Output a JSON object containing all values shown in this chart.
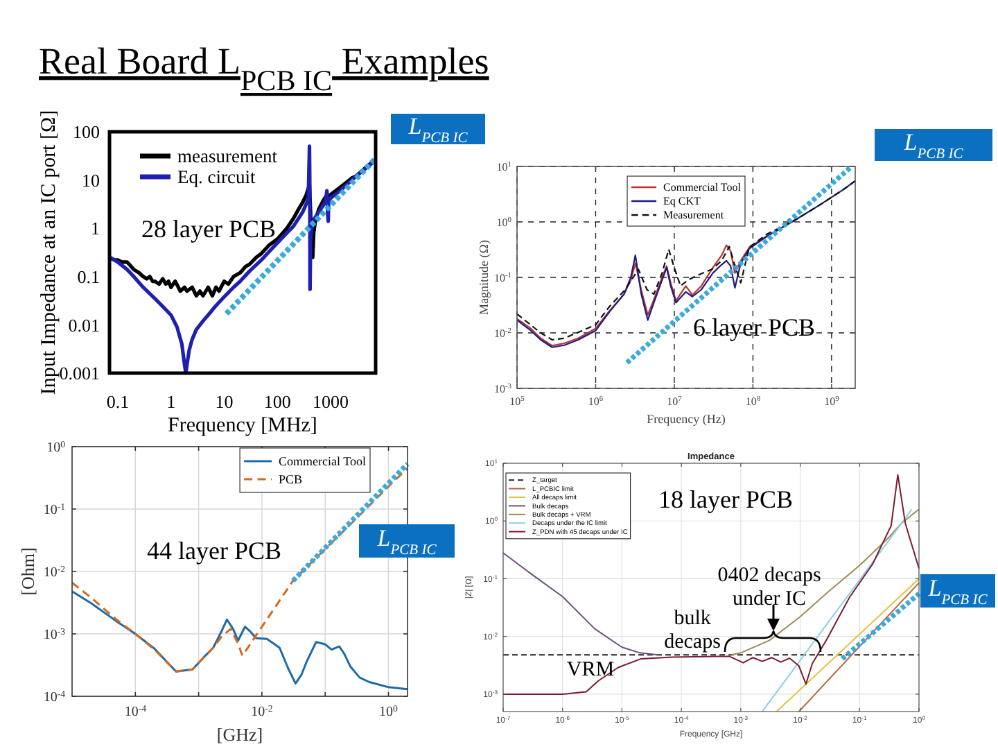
{
  "chart_data": [
    {
      "type": "other",
      "title": "Real Board L$_{PCB IC}$ Examples"
    },
    {
      "type": "line",
      "xlabel": "Frequency [MHz]",
      "ylabel": "Input Impedance at an IC port [Ω]",
      "log": "xy",
      "xlim": [
        0.07,
        7000
      ],
      "ylim": [
        0.001,
        100
      ],
      "xticks": [
        0.1,
        1,
        10,
        100,
        1000
      ],
      "yticks": [
        0.001,
        0.01,
        0.1,
        1,
        10,
        100
      ],
      "legend": "top left",
      "annotations": [
        "28 layer PCB"
      ],
      "series": [
        {
          "name": "measurement",
          "color": "#000000",
          "x": [
            0.07,
            0.08,
            0.09,
            0.1,
            0.12,
            0.15,
            0.18,
            0.2,
            0.25,
            0.3,
            0.35,
            0.4,
            0.45,
            0.5,
            0.6,
            0.7,
            0.8,
            0.9,
            1,
            1.2,
            1.5,
            1.8,
            2,
            2.5,
            3,
            3.5,
            4,
            5,
            6,
            7,
            8,
            10,
            12,
            15,
            20,
            25,
            30,
            40,
            50,
            70,
            100,
            150,
            200,
            250,
            300,
            350,
            400,
            420,
            440,
            460,
            480,
            520,
            600,
            700,
            800,
            1000,
            1500,
            2000,
            2500,
            3000,
            4000,
            5000,
            6000,
            7000
          ],
          "values": [
            0.25,
            0.23,
            0.22,
            0.22,
            0.2,
            0.2,
            0.16,
            0.14,
            0.12,
            0.1,
            0.09,
            0.1,
            0.08,
            0.08,
            0.07,
            0.09,
            0.07,
            0.08,
            0.06,
            0.08,
            0.05,
            0.06,
            0.05,
            0.06,
            0.04,
            0.05,
            0.04,
            0.06,
            0.04,
            0.06,
            0.05,
            0.08,
            0.07,
            0.1,
            0.12,
            0.16,
            0.18,
            0.25,
            0.3,
            0.45,
            0.6,
            1,
            1.6,
            2.5,
            3.5,
            5,
            8,
            2,
            0.5,
            0.25,
            0.8,
            1.5,
            2.5,
            3.5,
            4.5,
            5,
            7,
            9,
            11,
            12,
            16,
            20,
            23,
            26
          ]
        },
        {
          "name": "Eq. circuit",
          "color": "#1f1fb0",
          "x": [
            0.07,
            0.1,
            0.15,
            0.2,
            0.3,
            0.5,
            0.7,
            1,
            1.3,
            1.6,
            1.8,
            1.9,
            2,
            2.2,
            2.5,
            3,
            4,
            5,
            7,
            10,
            15,
            20,
            30,
            50,
            70,
            100,
            150,
            200,
            300,
            380,
            400,
            405,
            410,
            420,
            450,
            500,
            600,
            800,
            850,
            880,
            900,
            920,
            1000,
            1500,
            2000,
            3000,
            5000,
            7000
          ],
          "values": [
            0.25,
            0.2,
            0.14,
            0.1,
            0.06,
            0.035,
            0.024,
            0.016,
            0.009,
            0.004,
            0.0015,
            0.001,
            0.0015,
            0.003,
            0.005,
            0.008,
            0.012,
            0.016,
            0.025,
            0.038,
            0.06,
            0.08,
            0.13,
            0.22,
            0.33,
            0.5,
            0.8,
            1.1,
            2.2,
            4,
            50,
            10,
            0.055,
            0.6,
            1.2,
            1.6,
            2.2,
            3.5,
            6,
            2,
            1.4,
            3.8,
            4.2,
            6,
            8,
            12,
            19,
            26
          ]
        },
        {
          "name": "L$_{PCB IC}$",
          "color": "#3aa9dc",
          "line_style": "dotted",
          "x": [
            11,
            7000
          ],
          "values": [
            0.017,
            28
          ]
        }
      ]
    },
    {
      "type": "line",
      "xlabel": "Frequency (Hz)",
      "ylabel": "Magnitude (Ω)",
      "log": "xy",
      "xlim": [
        100000,
        2000000000
      ],
      "ylim": [
        0.001,
        10
      ],
      "xticks": [
        {
          "value": 100000,
          "label": "10$^{5}$"
        },
        {
          "value": 1000000,
          "label": "10$^{6}$"
        },
        {
          "value": 10000000,
          "label": "10$^{7}$"
        },
        {
          "value": 100000000,
          "label": "10$^{8}$"
        },
        {
          "value": 1000000000,
          "label": "10$^{9}$"
        }
      ],
      "yticks": [
        {
          "value": 0.001,
          "label": "10$^{-3}$"
        },
        {
          "value": 0.01,
          "label": "10$^{-2}$"
        },
        {
          "value": 0.1,
          "label": "10$^{-1}$"
        },
        {
          "value": 1,
          "label": "10$^{0}$"
        },
        {
          "value": 10,
          "label": "10$^{1}$"
        }
      ],
      "grid": true,
      "legend": "top",
      "annotations": [
        "6 layer PCB"
      ],
      "series": [
        {
          "name": "Commercial Tool",
          "color": "#b83232",
          "x": [
            100000,
            150000,
            200000,
            280000,
            400000,
            600000,
            1000000,
            1500000,
            2300000,
            2800000,
            3200000,
            3800000,
            4600000,
            5500000,
            7000000,
            8000000,
            9000000,
            10500000,
            14000000,
            17000000,
            22000000,
            31000000,
            40000000,
            46000000,
            52000000,
            59000000,
            70000000,
            90000000,
            150000000,
            350000000
          ],
          "values": [
            0.018,
            0.012,
            0.008,
            0.0059,
            0.0065,
            0.008,
            0.012,
            0.025,
            0.05,
            0.09,
            0.18,
            0.06,
            0.021,
            0.04,
            0.1,
            0.16,
            0.08,
            0.038,
            0.07,
            0.048,
            0.07,
            0.15,
            0.25,
            0.38,
            0.3,
            0.12,
            0.2,
            0.35,
            0.55,
            1.1
          ]
        },
        {
          "name": "Eq CKT",
          "color": "#1c1c84",
          "x": [
            100000,
            150000,
            200000,
            280000,
            400000,
            600000,
            1000000,
            1500000,
            2300000,
            2800000,
            3200000,
            3800000,
            4600000,
            5500000,
            7000000,
            8000000,
            9000000,
            10500000,
            14000000,
            17000000,
            22000000,
            31000000,
            40000000,
            46000000,
            52000000,
            59000000,
            70000000,
            90000000,
            150000000,
            350000000,
            700000000,
            1400000000,
            2000000000
          ],
          "values": [
            0.017,
            0.011,
            0.0075,
            0.0055,
            0.006,
            0.0075,
            0.011,
            0.024,
            0.05,
            0.1,
            0.25,
            0.05,
            0.017,
            0.035,
            0.09,
            0.15,
            0.07,
            0.035,
            0.055,
            0.045,
            0.06,
            0.12,
            0.17,
            0.2,
            0.16,
            0.065,
            0.18,
            0.33,
            0.55,
            1.1,
            2,
            3.8,
            5.5
          ]
        },
        {
          "name": "Measurement",
          "color": "#111111",
          "line_style": "dashed",
          "x": [
            100000,
            200000,
            280000,
            400000,
            1000000,
            1500000,
            2300000,
            3000000,
            3500000,
            4500000,
            5500000,
            7000000,
            8500000,
            10000000,
            12000000,
            15000000,
            20000000,
            30000000,
            40000000,
            50000000,
            60000000,
            70000000,
            90000000,
            150000000,
            350000000,
            700000000,
            1400000000,
            2000000000
          ],
          "values": [
            0.022,
            0.01,
            0.0075,
            0.008,
            0.014,
            0.03,
            0.057,
            0.1,
            0.14,
            0.06,
            0.05,
            0.12,
            0.32,
            0.15,
            0.07,
            0.09,
            0.11,
            0.14,
            0.2,
            0.36,
            0.15,
            0.08,
            0.35,
            0.6,
            1.1,
            2,
            3.8,
            5.5
          ]
        },
        {
          "name": "L$_{PCB IC}$",
          "color": "#3aa9dc",
          "line_style": "dotted",
          "x": [
            2500000,
            1800000000
          ],
          "values": [
            0.0029,
            10
          ]
        }
      ]
    },
    {
      "type": "line",
      "xlabel": "[GHz]",
      "ylabel": "[Ohm]",
      "log": "xy",
      "xlim": [
        1e-05,
        2
      ],
      "ylim": [
        0.0001,
        1
      ],
      "xticks": [
        {
          "value": 0.0001,
          "label": "10$^{-4}$"
        },
        {
          "value": 0.001,
          "label": null
        },
        {
          "value": 0.01,
          "label": "10$^{-2}$"
        },
        {
          "value": 0.1,
          "label": null
        },
        {
          "value": 1,
          "label": "10$^{0}$"
        }
      ],
      "yticks": [
        {
          "value": 0.0001,
          "label": "10$^{-4}$"
        },
        {
          "value": 0.001,
          "label": "10$^{-3}$"
        },
        {
          "value": 0.01,
          "label": "10$^{-2}$"
        },
        {
          "value": 0.1,
          "label": "10$^{-1}$"
        },
        {
          "value": 1,
          "label": "10$^{0}$"
        }
      ],
      "grid": true,
      "legend": "top right",
      "annotations": [
        "44 layer PCB"
      ],
      "series": [
        {
          "name": "Commercial Tool",
          "color": "#1f6aa5",
          "x": [
            1e-05,
            2e-05,
            5e-05,
            0.0001,
            0.0002,
            0.00044,
            0.0008,
            0.0012,
            0.0017,
            0.0023,
            0.0028,
            0.0035,
            0.0042,
            0.0054,
            0.0065,
            0.0081,
            0.012,
            0.019,
            0.026,
            0.034,
            0.042,
            0.051,
            0.072,
            0.1,
            0.126,
            0.167,
            0.2,
            0.25,
            0.35,
            0.49,
            1,
            2
          ],
          "values": [
            0.0048,
            0.0031,
            0.0016,
            0.001,
            0.00058,
            0.00025,
            0.00027,
            0.00042,
            0.0006,
            0.0011,
            0.0017,
            0.0012,
            0.00078,
            0.0013,
            0.0011,
            0.00085,
            0.00083,
            0.0006,
            0.00028,
            0.00016,
            0.00022,
            0.00036,
            0.00074,
            0.00068,
            0.00056,
            0.00063,
            0.00048,
            0.0003,
            0.0002,
            0.00017,
            0.00014,
            0.00013
          ]
        },
        {
          "name": "PCB",
          "color": "#d2691e",
          "line_style": "dashed",
          "x": [
            1e-05,
            2e-05,
            5e-05,
            0.0001,
            0.0002,
            0.00044,
            0.0008,
            0.0012,
            0.0017,
            0.0023,
            0.0032,
            0.0042,
            0.0049,
            0.006,
            0.0105,
            0.031,
            0.1,
            0.3,
            1,
            2
          ],
          "values": [
            0.0066,
            0.0038,
            0.0017,
            0.001,
            0.00056,
            0.00025,
            0.00027,
            0.00042,
            0.0006,
            0.0009,
            0.0012,
            0.0007,
            0.00045,
            0.0006,
            0.0014,
            0.0071,
            0.023,
            0.068,
            0.23,
            0.45
          ]
        },
        {
          "name": "L$_{PCB IC}$",
          "color": "#3aa9dc",
          "line_style": "dotted",
          "x": [
            0.031,
            2
          ],
          "values": [
            0.0071,
            0.53
          ]
        }
      ]
    },
    {
      "type": "line",
      "title": "Impedance",
      "xlabel": "Frequency [GHz]",
      "ylabel": "|Z| [Ω]",
      "log": "xy",
      "xlim": [
        1e-07,
        1
      ],
      "ylim": [
        0.0005,
        10
      ],
      "xticks": [
        {
          "value": 1e-07,
          "label": "10$^{-7}$"
        },
        {
          "value": 1e-06,
          "label": "10$^{-6}$"
        },
        {
          "value": 1e-05,
          "label": "10$^{-5}$"
        },
        {
          "value": 0.0001,
          "label": "10$^{-4}$"
        },
        {
          "value": 0.001,
          "label": "10$^{-3}$"
        },
        {
          "value": 0.01,
          "label": "10$^{-2}$"
        },
        {
          "value": 0.1,
          "label": "10$^{-1}$"
        },
        {
          "value": 1,
          "label": "10$^{0}$"
        }
      ],
      "yticks": [
        {
          "value": 0.001,
          "label": "10$^{-3}$"
        },
        {
          "value": 0.01,
          "label": "10$^{-2}$"
        },
        {
          "value": 0.1,
          "label": "10$^{-1}$"
        },
        {
          "value": 1,
          "label": "10$^{0}$"
        },
        {
          "value": 10,
          "label": "10$^{1}$"
        }
      ],
      "grid": true,
      "legend": "top left",
      "annotations": [
        "18 layer PCB",
        "VRM",
        {
          "text": "bulk decaps",
          "x": 0.0005,
          "y": 0.0048
        },
        "0402 decaps under IC"
      ],
      "series": [
        {
          "name": "Z_target",
          "color": "#222222",
          "line_style": "dashed",
          "x": [
            1e-07,
            1
          ],
          "values": [
            0.0048,
            0.0048
          ]
        },
        {
          "name": "L_PCBIC limit",
          "color": "#b5683f",
          "x": [
            0.0095,
            1
          ],
          "values": [
            0.0005,
            0.085
          ]
        },
        {
          "name": "All decaps limit",
          "color": "#e6c040",
          "x": [
            0.004,
            1
          ],
          "values": [
            0.0005,
            0.1
          ]
        },
        {
          "name": "Bulk decaps",
          "color": "#6b4f7c",
          "x": [
            1e-07,
            3e-07,
            1e-06,
            3.5e-06,
            1e-05,
            2e-05,
            4e-05
          ],
          "values": [
            0.28,
            0.12,
            0.049,
            0.0135,
            0.0065,
            0.0052,
            0.0048
          ]
        },
        {
          "name": "Bulk decaps + VRM",
          "color": "#9d8b55",
          "x": [
            0.0007,
            0.001,
            0.003,
            0.01,
            0.03,
            0.1,
            0.3,
            0.5,
            1
          ],
          "values": [
            0.0048,
            0.0052,
            0.0085,
            0.022,
            0.06,
            0.17,
            0.5,
            0.9,
            1.6
          ]
        },
        {
          "name": "Decaps under the IC limit",
          "color": "#86cfe6",
          "x": [
            0.0023,
            0.76
          ],
          "values": [
            0.0005,
            1.6
          ]
        },
        {
          "name": "Z_PDN with 45 decaps under IC",
          "color": "#7d1a2e",
          "x": [
            1e-07,
            1e-06,
            2.5e-06,
            4e-06,
            8.6e-06,
            2.1e-05,
            7e-05,
            0.00038,
            0.00065,
            0.0011,
            0.0016,
            0.0023,
            0.0033,
            0.0047,
            0.0066,
            0.0095,
            0.0125,
            0.016,
            0.028,
            0.068,
            0.166,
            0.34,
            0.44,
            0.59,
            1
          ],
          "values": [
            0.001,
            0.001,
            0.0011,
            0.0017,
            0.0029,
            0.0041,
            0.0044,
            0.0045,
            0.0045,
            0.0035,
            0.0043,
            0.0037,
            0.0043,
            0.0036,
            0.0042,
            0.0031,
            0.0015,
            0.0034,
            0.0089,
            0.048,
            0.18,
            0.83,
            6.3,
            0.9,
            0.15
          ]
        },
        {
          "name": "L$_{PCB IC}$",
          "color": "#3aa9dc",
          "line_style": "dotted",
          "x": [
            0.051,
            1
          ],
          "values": [
            0.0041,
            0.055
          ]
        }
      ]
    }
  ]
}
